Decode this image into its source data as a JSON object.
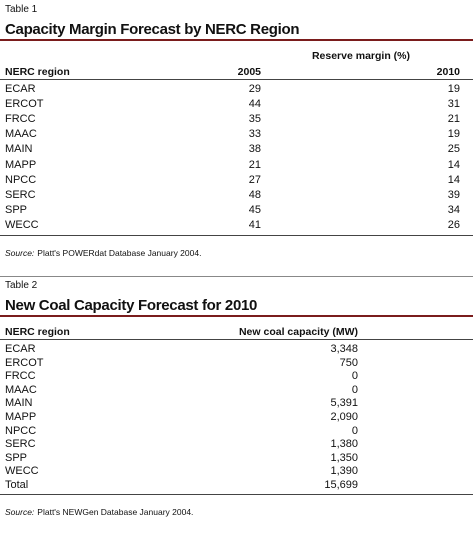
{
  "tables": [
    {
      "label": "Table 1",
      "title": "Capacity Margin Forecast by NERC Region",
      "group_header": "Reserve margin (%)",
      "columns": [
        "NERC region",
        "2005",
        "2010"
      ],
      "rows": [
        [
          "ECAR",
          "29",
          "19"
        ],
        [
          "ERCOT",
          "44",
          "31"
        ],
        [
          "FRCC",
          "35",
          "21"
        ],
        [
          "MAAC",
          "33",
          "19"
        ],
        [
          "MAIN",
          "38",
          "25"
        ],
        [
          "MAPP",
          "21",
          "14"
        ],
        [
          "NPCC",
          "27",
          "14"
        ],
        [
          "SERC",
          "48",
          "39"
        ],
        [
          "SPP",
          "45",
          "34"
        ],
        [
          "WECC",
          "41",
          "26"
        ]
      ],
      "source_label": "Source:",
      "source_text": "Platt's POWERdat Database January 2004."
    },
    {
      "label": "Table 2",
      "title": "New Coal Capacity Forecast for 2010",
      "columns": [
        "NERC region",
        "New coal capacity (MW)"
      ],
      "rows": [
        [
          "ECAR",
          "3,348"
        ],
        [
          "ERCOT",
          "750"
        ],
        [
          "FRCC",
          "0"
        ],
        [
          "MAAC",
          "0"
        ],
        [
          "MAIN",
          "5,391"
        ],
        [
          "MAPP",
          "2,090"
        ],
        [
          "NPCC",
          "0"
        ],
        [
          "SERC",
          "1,380"
        ],
        [
          "SPP",
          "1,350"
        ],
        [
          "WECC",
          "1,390"
        ],
        [
          "Total",
          "15,699"
        ]
      ],
      "source_label": "Source:",
      "source_text": "Platt's NEWGen Database January 2004."
    }
  ]
}
